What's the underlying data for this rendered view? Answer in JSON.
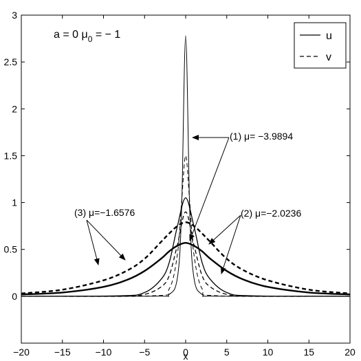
{
  "chart_data": {
    "type": "line",
    "title": "",
    "xlabel": "x",
    "ylabel": "",
    "xlim": [
      -20,
      20
    ],
    "ylim": [
      -0.5,
      3
    ],
    "xticks": [
      -20,
      -15,
      -10,
      -5,
      0,
      5,
      10,
      15,
      20
    ],
    "xtick_labels": [
      "−20",
      "−15",
      "−10",
      "−5",
      "0",
      "5",
      "10",
      "15",
      "20"
    ],
    "yticks": [
      0,
      0.5,
      1,
      1.5,
      2,
      2.5,
      3
    ],
    "ytick_labels": [
      "0",
      "0.5",
      "1",
      "1.5",
      "2",
      "2.5",
      "3"
    ],
    "grid": false,
    "legend_position": "top-right",
    "legend": [
      {
        "label": "u",
        "style": "solid"
      },
      {
        "label": "v",
        "style": "dashed"
      }
    ],
    "parameter_label": "a = 0   μ",
    "parameter_sub": "0",
    "parameter_value": " = − 1",
    "series": [
      {
        "group": "u",
        "curve": "(1)",
        "x": [
          -20,
          -4,
          -2,
          -1,
          -0.5,
          0,
          0.5,
          1,
          2,
          4,
          20
        ],
        "values": [
          0,
          0.001,
          0.02,
          0.2,
          0.9,
          2.78,
          0.9,
          0.2,
          0.02,
          0.001,
          0
        ]
      },
      {
        "group": "v",
        "curve": "(1)",
        "x": [
          -20,
          -4,
          -2,
          -1,
          -0.5,
          0,
          0.5,
          1,
          2,
          4,
          20
        ],
        "values": [
          0,
          0.005,
          0.08,
          0.45,
          1.0,
          1.5,
          1.0,
          0.45,
          0.08,
          0.005,
          0
        ]
      },
      {
        "group": "u",
        "curve": "(2)",
        "x": [
          -20,
          -8,
          -5,
          -3,
          -2,
          -1,
          0,
          1,
          2,
          3,
          5,
          8,
          20
        ],
        "values": [
          0,
          0.005,
          0.04,
          0.18,
          0.36,
          0.75,
          1.05,
          0.75,
          0.36,
          0.18,
          0.04,
          0.005,
          0
        ]
      },
      {
        "group": "v",
        "curve": "(2)",
        "x": [
          -20,
          -8,
          -5,
          -3,
          -2,
          -1,
          0,
          1,
          2,
          3,
          5,
          8,
          20
        ],
        "values": [
          0,
          0.002,
          0.02,
          0.1,
          0.22,
          0.55,
          0.9,
          0.55,
          0.22,
          0.1,
          0.02,
          0.002,
          0
        ]
      },
      {
        "group": "u",
        "curve": "(3)",
        "x": [
          -20,
          -15,
          -10,
          -7,
          -5,
          -3,
          -2,
          -1,
          0,
          1,
          2,
          3,
          5,
          7,
          10,
          15,
          20
        ],
        "values": [
          0.02,
          0.04,
          0.1,
          0.18,
          0.27,
          0.4,
          0.48,
          0.54,
          0.57,
          0.54,
          0.48,
          0.4,
          0.27,
          0.18,
          0.1,
          0.04,
          0.02
        ]
      },
      {
        "group": "v",
        "curve": "(3)",
        "x": [
          -20,
          -15,
          -10,
          -7,
          -5,
          -3,
          -2,
          -1,
          0,
          1,
          2,
          3,
          5,
          7,
          10,
          15,
          20
        ],
        "values": [
          0.03,
          0.07,
          0.17,
          0.28,
          0.4,
          0.58,
          0.67,
          0.75,
          0.79,
          0.75,
          0.67,
          0.58,
          0.4,
          0.28,
          0.17,
          0.07,
          0.03
        ]
      }
    ],
    "annotations": [
      {
        "id": "label1",
        "text": "(1) μ= −3.9894"
      },
      {
        "id": "label2",
        "text": "(2) μ=−2.0236"
      },
      {
        "id": "label3",
        "text": "(3) μ=−1.6576"
      }
    ]
  }
}
